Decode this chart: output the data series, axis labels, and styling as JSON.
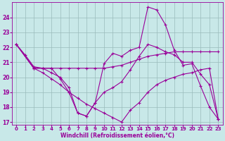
{
  "xlabel": "Windchill (Refroidissement éolien,°C)",
  "xlim": [
    -0.5,
    23.5
  ],
  "ylim": [
    16.8,
    25.0
  ],
  "yticks": [
    17,
    18,
    19,
    20,
    21,
    22,
    23,
    24
  ],
  "xticks": [
    0,
    1,
    2,
    3,
    4,
    5,
    6,
    7,
    8,
    9,
    10,
    11,
    12,
    13,
    14,
    15,
    16,
    17,
    18,
    19,
    20,
    21,
    22,
    23
  ],
  "background_color": "#c8e8e8",
  "grid_color": "#99bbbb",
  "line_color": "#990099",
  "lines": [
    {
      "x": [
        0,
        1,
        2,
        3,
        4,
        5,
        6,
        7,
        8,
        9,
        10,
        11,
        12,
        13,
        14,
        15,
        16,
        17,
        18,
        19,
        20,
        21,
        22,
        23
      ],
      "y": [
        22.2,
        21.5,
        20.7,
        20.6,
        20.6,
        19.9,
        19.0,
        17.6,
        17.4,
        18.3,
        20.9,
        21.6,
        21.4,
        21.8,
        22.0,
        24.7,
        24.5,
        23.5,
        21.8,
        20.8,
        20.9,
        19.4,
        18.0,
        17.2
      ]
    },
    {
      "x": [
        0,
        2,
        3,
        4,
        5,
        6,
        7,
        8,
        9,
        10,
        11,
        12,
        13,
        14,
        15,
        16,
        17,
        18,
        19,
        20,
        21,
        22,
        23
      ],
      "y": [
        22.2,
        20.6,
        20.6,
        20.6,
        20.6,
        20.6,
        20.6,
        20.6,
        20.6,
        20.6,
        20.7,
        20.8,
        21.0,
        21.2,
        21.4,
        21.5,
        21.6,
        21.7,
        21.7,
        21.7,
        21.7,
        21.7,
        21.7
      ]
    },
    {
      "x": [
        0,
        2,
        3,
        4,
        5,
        6,
        7,
        8,
        9,
        10,
        11,
        12,
        13,
        14,
        15,
        16,
        17,
        18,
        19,
        20,
        21,
        22,
        23
      ],
      "y": [
        22.2,
        20.6,
        20.3,
        19.9,
        19.5,
        19.0,
        18.6,
        18.2,
        17.9,
        17.6,
        17.3,
        17.0,
        17.8,
        18.3,
        19.0,
        19.5,
        19.8,
        20.0,
        20.2,
        20.3,
        20.5,
        20.6,
        17.2
      ]
    },
    {
      "x": [
        0,
        2,
        3,
        4,
        5,
        6,
        7,
        8,
        9,
        10,
        11,
        12,
        13,
        14,
        15,
        16,
        17,
        18,
        19,
        20,
        21,
        22,
        23
      ],
      "y": [
        22.2,
        20.6,
        20.6,
        20.3,
        20.0,
        19.3,
        17.6,
        17.4,
        18.3,
        19.0,
        19.3,
        19.7,
        20.5,
        21.4,
        22.2,
        22.0,
        21.7,
        21.5,
        21.0,
        21.0,
        20.2,
        19.5,
        17.2
      ]
    }
  ]
}
